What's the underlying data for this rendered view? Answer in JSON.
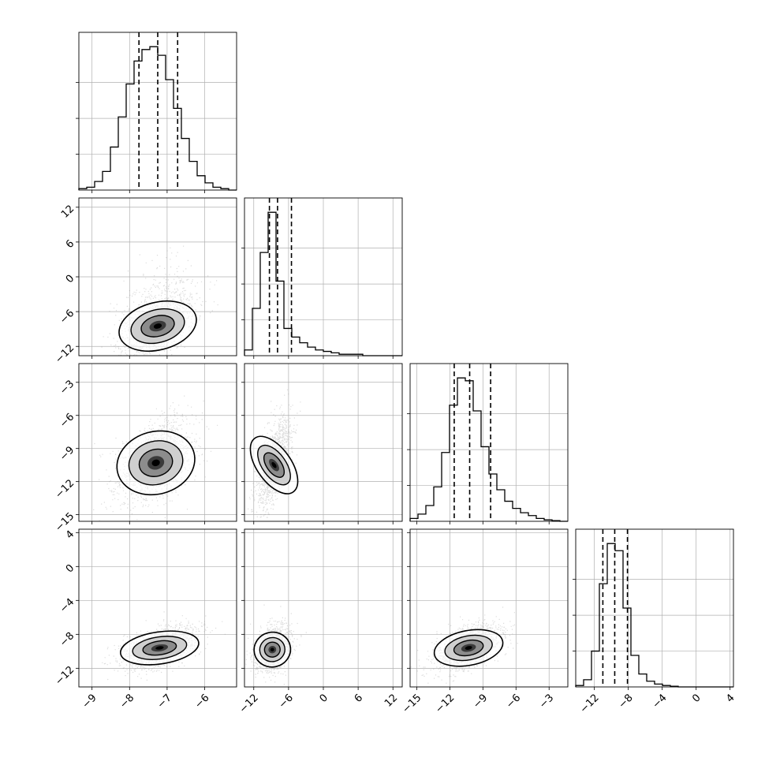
{
  "chart_data": {
    "type": "corner",
    "grid": true,
    "n_params": 4,
    "quantile_lines": "dashed",
    "params": [
      {
        "range": [
          -9.35,
          -5.15
        ],
        "ticks": [
          -9,
          -8,
          -7,
          -6
        ],
        "tick_labels": [
          "−9",
          "−8",
          "−7",
          "−6"
        ],
        "quantiles": [
          -7.75,
          -7.25,
          -6.72
        ],
        "hist": {
          "edges": [
            -9.35,
            -9.14,
            -8.93,
            -8.72,
            -8.51,
            -8.3,
            -8.09,
            -7.88,
            -7.67,
            -7.46,
            -7.25,
            -7.04,
            -6.83,
            -6.62,
            -6.41,
            -6.2,
            -5.99,
            -5.78,
            -5.57,
            -5.36,
            -5.15
          ],
          "counts": [
            0.01,
            0.02,
            0.06,
            0.13,
            0.3,
            0.51,
            0.74,
            0.9,
            0.98,
            1.0,
            0.94,
            0.77,
            0.57,
            0.36,
            0.2,
            0.1,
            0.05,
            0.02,
            0.01,
            0
          ]
        }
      },
      {
        "range": [
          -13.6,
          13.6
        ],
        "ticks": [
          -12,
          -6,
          0,
          6,
          12
        ],
        "tick_labels": [
          "−12",
          "−6",
          "0",
          "6",
          "12"
        ],
        "quantiles": [
          -9.3,
          -7.9,
          -5.5
        ],
        "hist": {
          "edges": [
            -13.6,
            -12.24,
            -10.88,
            -9.52,
            -8.16,
            -6.8,
            -5.44,
            -4.08,
            -2.72,
            -1.36,
            0.0,
            1.36,
            2.72,
            4.08,
            5.44,
            6.8,
            8.16,
            9.52,
            10.88,
            12.24,
            13.6
          ],
          "counts": [
            0.04,
            0.33,
            0.72,
            1.0,
            0.52,
            0.19,
            0.13,
            0.09,
            0.06,
            0.04,
            0.03,
            0.02,
            0.01,
            0.01,
            0.01,
            0,
            0,
            0,
            0,
            0
          ]
        }
      },
      {
        "range": [
          -15.6,
          -1.3
        ],
        "ticks": [
          -15,
          -12,
          -9,
          -6,
          -3
        ],
        "tick_labels": [
          "−15",
          "−12",
          "−9",
          "−6",
          "−3"
        ],
        "quantiles": [
          -11.6,
          -10.2,
          -8.3
        ],
        "hist": {
          "edges": [
            -15.6,
            -14.885,
            -14.17,
            -13.455,
            -12.74,
            -12.025,
            -11.31,
            -10.595,
            -9.88,
            -9.165,
            -8.45,
            -7.735,
            -7.02,
            -6.305,
            -5.59,
            -4.875,
            -4.16,
            -3.445,
            -2.73,
            -2.015,
            -1.3
          ],
          "counts": [
            0.02,
            0.05,
            0.11,
            0.24,
            0.48,
            0.81,
            1.0,
            0.98,
            0.77,
            0.52,
            0.33,
            0.22,
            0.14,
            0.09,
            0.06,
            0.04,
            0.02,
            0.01,
            0.005,
            0
          ]
        }
      },
      {
        "range": [
          -14.2,
          4.4
        ],
        "ticks": [
          -12,
          -8,
          -4,
          0,
          4
        ],
        "tick_labels": [
          "−12",
          "−8",
          "−4",
          "0",
          "4"
        ],
        "quantiles": [
          -11.0,
          -9.6,
          -8.1
        ],
        "hist": {
          "edges": [
            -14.2,
            -13.27,
            -12.34,
            -11.41,
            -10.48,
            -9.55,
            -8.62,
            -7.69,
            -6.76,
            -5.83,
            -4.9,
            -3.97,
            -3.04,
            -2.11,
            -1.18,
            -0.25,
            0.68,
            1.61,
            2.54,
            3.47,
            4.4
          ],
          "counts": [
            0.01,
            0.05,
            0.25,
            0.72,
            1.0,
            0.95,
            0.55,
            0.22,
            0.09,
            0.04,
            0.02,
            0.01,
            0.005,
            0,
            0,
            0,
            0,
            0,
            0,
            0
          ]
        }
      }
    ],
    "panels_2d": [
      {
        "x": 0,
        "y": 1,
        "center": [
          -7.25,
          -8.5
        ],
        "sd": [
          0.5,
          2.6
        ],
        "rho": 0.55,
        "skew": 2.6
      },
      {
        "x": 0,
        "y": 2,
        "center": [
          -7.3,
          -10.3
        ],
        "sd": [
          0.5,
          1.8
        ],
        "rho": 0.45,
        "skew": 0.6
      },
      {
        "x": 0,
        "y": 3,
        "center": [
          -7.2,
          -9.6
        ],
        "sd": [
          0.5,
          1.2
        ],
        "rho": 0.45,
        "skew": 0.4
      },
      {
        "x": 1,
        "y": 2,
        "center": [
          -8.5,
          -10.5
        ],
        "sd": [
          1.4,
          1.9
        ],
        "rho": 0.65,
        "skew": 0.5
      },
      {
        "x": 1,
        "y": 3,
        "center": [
          -8.8,
          -9.8
        ],
        "sd": [
          1.5,
          1.3
        ],
        "rho": 0.3,
        "skew": 0.4
      },
      {
        "x": 2,
        "y": 3,
        "center": [
          -10.3,
          -9.6
        ],
        "sd": [
          1.5,
          1.3
        ],
        "rho": 0.5,
        "skew": 0.4
      }
    ]
  }
}
